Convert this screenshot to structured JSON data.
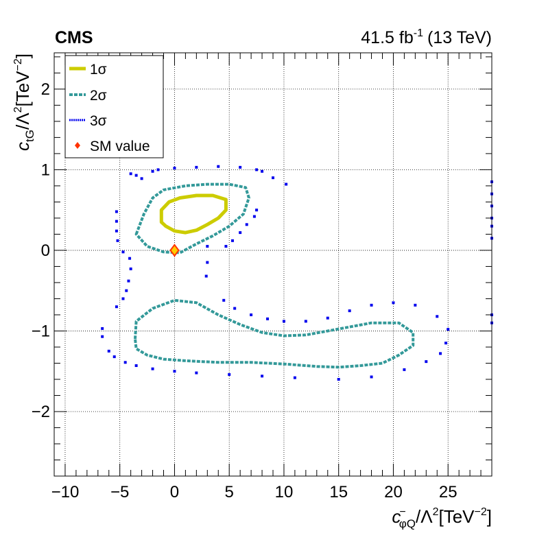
{
  "header": {
    "experiment": "CMS",
    "luminosity": "41.5 fb",
    "lumi_exponent": "-1",
    "energy": "(13 TeV)"
  },
  "chart_data": {
    "type": "scatter",
    "xlabel": {
      "base": "c",
      "sup": "−",
      "sub": "φQ",
      "rest": "/Λ",
      "rest_sup": "2",
      "unit": "[TeV",
      "unit_sup": "−2",
      "close": "]"
    },
    "ylabel": {
      "base": "c",
      "sub": "tG",
      "rest": "/Λ",
      "rest_sup": "2",
      "unit": "[TeV",
      "unit_sup": "−2",
      "close": "]"
    },
    "xlim": [
      -11,
      29
    ],
    "ylim": [
      -2.8,
      2.45
    ],
    "x_ticks": [
      -10,
      -5,
      0,
      5,
      10,
      15,
      20,
      25
    ],
    "x_tick_labels": [
      "−10",
      "−5",
      "0",
      "5",
      "10",
      "15",
      "20",
      "25"
    ],
    "y_ticks": [
      -2,
      -1,
      0,
      1,
      2
    ],
    "y_tick_labels": [
      "−2",
      "−1",
      "0",
      "1",
      "2"
    ],
    "grid": true,
    "legend_position": "top-left",
    "colors": {
      "one_sigma": "#cccc00",
      "two_sigma": "#339999",
      "three_sigma": "#0000ee",
      "sm_marker": "#ff3300",
      "sm_fill": "#ffcc00"
    },
    "legend": [
      {
        "label": "1σ",
        "style": "solid"
      },
      {
        "label": "2σ",
        "style": "dash"
      },
      {
        "label": "3σ",
        "style": "dot"
      },
      {
        "label": "SM value",
        "style": "marker"
      }
    ],
    "series": [
      {
        "name": "1σ",
        "closed": true,
        "points": [
          [
            -1.2,
            0.35
          ],
          [
            -1.2,
            0.5
          ],
          [
            -0.5,
            0.6
          ],
          [
            0.5,
            0.65
          ],
          [
            2,
            0.68
          ],
          [
            3.5,
            0.68
          ],
          [
            4.7,
            0.63
          ],
          [
            4.7,
            0.5
          ],
          [
            4,
            0.4
          ],
          [
            3,
            0.32
          ],
          [
            2,
            0.25
          ],
          [
            1,
            0.22
          ],
          [
            0,
            0.24
          ],
          [
            -0.8,
            0.3
          ]
        ]
      },
      {
        "name": "2σ",
        "closed": true,
        "points": [
          [
            -3.5,
            0.2
          ],
          [
            -2.8,
            0.45
          ],
          [
            -2,
            0.65
          ],
          [
            -1,
            0.75
          ],
          [
            1,
            0.8
          ],
          [
            3,
            0.82
          ],
          [
            5,
            0.82
          ],
          [
            6.5,
            0.78
          ],
          [
            6.8,
            0.65
          ],
          [
            6.3,
            0.45
          ],
          [
            5,
            0.3
          ],
          [
            3.5,
            0.18
          ],
          [
            2,
            0.08
          ],
          [
            0.5,
            -0.03
          ],
          [
            -1,
            -0.02
          ],
          [
            -2.5,
            0.05
          ]
        ]
      },
      {
        "name": "2σ",
        "closed": true,
        "points": [
          [
            -3.6,
            -1.1
          ],
          [
            -3.5,
            -0.88
          ],
          [
            -2,
            -0.72
          ],
          [
            0,
            -0.62
          ],
          [
            2,
            -0.65
          ],
          [
            4,
            -0.8
          ],
          [
            6,
            -0.92
          ],
          [
            8,
            -1.02
          ],
          [
            10,
            -1.06
          ],
          [
            12,
            -1.05
          ],
          [
            14,
            -1.0
          ],
          [
            16,
            -0.95
          ],
          [
            18,
            -0.9
          ],
          [
            20.5,
            -0.9
          ],
          [
            21.8,
            -1.02
          ],
          [
            21.8,
            -1.18
          ],
          [
            20.5,
            -1.3
          ],
          [
            19,
            -1.4
          ],
          [
            17,
            -1.43
          ],
          [
            15,
            -1.45
          ],
          [
            13,
            -1.44
          ],
          [
            10,
            -1.41
          ],
          [
            7,
            -1.39
          ],
          [
            4,
            -1.39
          ],
          [
            1,
            -1.37
          ],
          [
            -1,
            -1.35
          ],
          [
            -2.5,
            -1.3
          ],
          [
            -3.5,
            -1.22
          ]
        ]
      },
      {
        "name": "3σ",
        "closed": false,
        "points": [
          [
            -4,
            0.95
          ],
          [
            -3.5,
            0.93
          ],
          [
            -3,
            0.89
          ],
          [
            -5.3,
            0.48
          ],
          [
            -5.3,
            0.36
          ],
          [
            -5.3,
            0.24
          ],
          [
            -5.2,
            0.12
          ],
          [
            -4.7,
            -0.02
          ],
          [
            -4.1,
            -0.1
          ],
          [
            -4,
            -0.23
          ],
          [
            -4.2,
            -0.38
          ],
          [
            -4.4,
            -0.5
          ],
          [
            -4.7,
            -0.6
          ],
          [
            -5.3,
            -0.7
          ],
          [
            -6.6,
            -0.97
          ],
          [
            -6.6,
            -1.07
          ],
          [
            -6,
            -1.25
          ],
          [
            -5.5,
            -1.32
          ],
          [
            -4.5,
            -1.39
          ],
          [
            -3.5,
            -1.43
          ],
          [
            -2,
            -1.47
          ],
          [
            0,
            -1.5
          ],
          [
            2,
            -1.52
          ],
          [
            5,
            -1.54
          ],
          [
            8,
            -1.56
          ],
          [
            11,
            -1.58
          ],
          [
            15,
            -1.6
          ],
          [
            18,
            -1.57
          ],
          [
            21,
            -1.48
          ],
          [
            23,
            -1.38
          ],
          [
            24.3,
            -1.28
          ],
          [
            24.8,
            -1.15
          ],
          [
            25,
            -0.98
          ],
          [
            24,
            -0.82
          ],
          [
            22,
            -0.68
          ],
          [
            20,
            -0.65
          ],
          [
            18,
            -0.68
          ],
          [
            16,
            -0.75
          ],
          [
            14,
            -0.84
          ],
          [
            12,
            -0.88
          ],
          [
            10,
            -0.88
          ],
          [
            8.5,
            -0.85
          ],
          [
            7,
            -0.8
          ],
          [
            5.5,
            -0.72
          ],
          [
            4.5,
            -0.62
          ],
          [
            3,
            0.05
          ],
          [
            3,
            -0.15
          ],
          [
            2.9,
            -0.32
          ],
          [
            4.7,
            0.05
          ],
          [
            5.3,
            0.12
          ],
          [
            6,
            0.22
          ],
          [
            6.6,
            0.32
          ],
          [
            7.3,
            0.42
          ],
          [
            7.5,
            0.5
          ],
          [
            2,
            1.03
          ],
          [
            4,
            1.04
          ],
          [
            6,
            1.03
          ],
          [
            7.5,
            1.0
          ],
          [
            8,
            0.98
          ],
          [
            0,
            1.02
          ],
          [
            -1.5,
            1.0
          ],
          [
            -2,
            0.98
          ],
          [
            9,
            0.9
          ],
          [
            10.2,
            0.82
          ],
          [
            29,
            0.85
          ],
          [
            29,
            0.7
          ],
          [
            29,
            0.55
          ],
          [
            29,
            0.4
          ],
          [
            29,
            0.3
          ],
          [
            29,
            0.15
          ],
          [
            29,
            -0.8
          ],
          [
            29,
            -0.9
          ]
        ]
      }
    ],
    "sm_point": {
      "label": "SM value",
      "x": 0,
      "y": 0
    }
  }
}
